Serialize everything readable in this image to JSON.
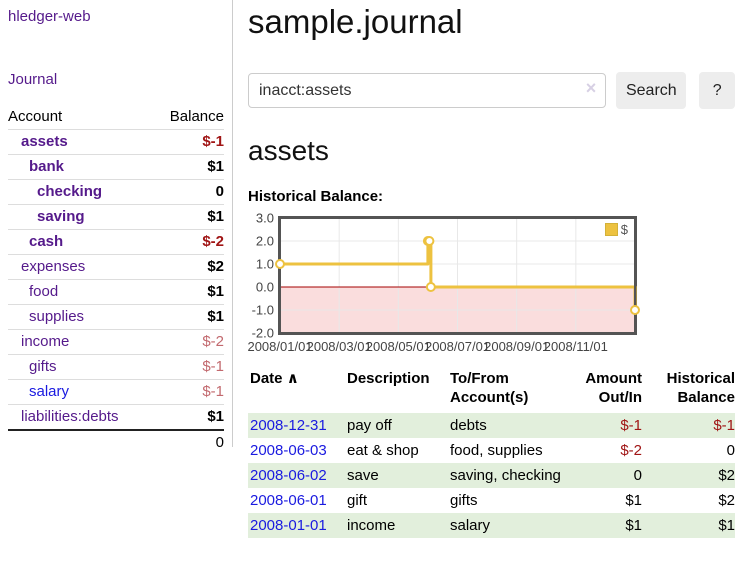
{
  "app": {
    "title": "hledger-web"
  },
  "sidebar": {
    "journal_link": "Journal",
    "table": {
      "account_header": "Account",
      "balance_header": "Balance",
      "rows": [
        {
          "name": "assets",
          "balance": "$-1"
        },
        {
          "name": "bank",
          "balance": "$1"
        },
        {
          "name": "checking",
          "balance": "0"
        },
        {
          "name": "saving",
          "balance": "$1"
        },
        {
          "name": "cash",
          "balance": "$-2"
        },
        {
          "name": "expenses",
          "balance": "$2"
        },
        {
          "name": "food",
          "balance": "$1"
        },
        {
          "name": "supplies",
          "balance": "$1"
        },
        {
          "name": "income",
          "balance": "$-2"
        },
        {
          "name": "gifts",
          "balance": "$-1"
        },
        {
          "name": "salary",
          "balance": "$-1"
        },
        {
          "name": "liabilities:debts",
          "balance": "$1"
        }
      ],
      "total": "0"
    }
  },
  "header": {
    "title": "sample.journal"
  },
  "search": {
    "value": "inacct:assets",
    "clear_icon": "×",
    "button_label": "Search",
    "help_label": "?"
  },
  "account_page": {
    "heading": "assets",
    "chart_label": "Historical Balance:"
  },
  "chart_data": {
    "type": "line",
    "step": true,
    "title": "Historical Balance",
    "series": [
      {
        "name": "$",
        "color": "#edc240",
        "marker": "open-circle",
        "dates": [
          "2008-01-01",
          "2008-06-01",
          "2008-06-02",
          "2008-06-03",
          "2008-12-31"
        ],
        "x_months": [
          0,
          5.0,
          5.05,
          5.1,
          12.0
        ],
        "values": [
          1,
          2,
          2,
          0,
          -1
        ]
      }
    ],
    "xlim": [
      0,
      12
    ],
    "ylim": [
      -2,
      3
    ],
    "yticks": [
      {
        "v": 3,
        "label": "3.0"
      },
      {
        "v": 2,
        "label": "2.0"
      },
      {
        "v": 1,
        "label": "1.0"
      },
      {
        "v": 0,
        "label": "0.0"
      },
      {
        "v": -1,
        "label": "-1.0"
      },
      {
        "v": -2,
        "label": "-2.0"
      }
    ],
    "xticks": [
      {
        "v": 0,
        "label": "2008/01/01"
      },
      {
        "v": 2,
        "label": "2008/03/01"
      },
      {
        "v": 4,
        "label": "2008/05/01"
      },
      {
        "v": 6,
        "label": "2008/07/01"
      },
      {
        "v": 8,
        "label": "2008/09/01"
      },
      {
        "v": 10,
        "label": "2008/11/01"
      }
    ],
    "legend_position": "top-right",
    "grid": true,
    "negative_region_fill": "#fadddd",
    "zero_line_color": "#a40000",
    "border_color": "#545454",
    "gridline_color": "#e8e8e8"
  },
  "register": {
    "columns": {
      "date": "Date",
      "description": "Description",
      "accounts": "To/From Account(s)",
      "amount": "Amount Out/In",
      "balance": "Historical Balance"
    },
    "sort_icon": "∧",
    "rows": [
      {
        "date": "2008-12-31",
        "description": "pay off",
        "accounts": "debts",
        "amount": "$-1",
        "balance": "$-1"
      },
      {
        "date": "2008-06-03",
        "description": "eat & shop",
        "accounts": "food, supplies",
        "amount": "$-2",
        "balance": "0"
      },
      {
        "date": "2008-06-02",
        "description": "save",
        "accounts": "saving, checking",
        "amount": "0",
        "balance": "$2"
      },
      {
        "date": "2008-06-01",
        "description": "gift",
        "accounts": "gifts",
        "amount": "$1",
        "balance": "$2"
      },
      {
        "date": "2008-01-01",
        "description": "income",
        "accounts": "salary",
        "amount": "$1",
        "balance": "$1"
      }
    ]
  },
  "colors": {
    "link_purple": "#551a8b",
    "link_blue": "#1a1ae0",
    "negative_dark_red": "#a01515",
    "negative_light_rose": "#c2696e",
    "row_green": "#e2efdc",
    "chart_line_gold": "#edc240",
    "chart_negative_fill": "#fadddd",
    "chart_zero_line": "#a40000",
    "chart_border": "#545454"
  }
}
